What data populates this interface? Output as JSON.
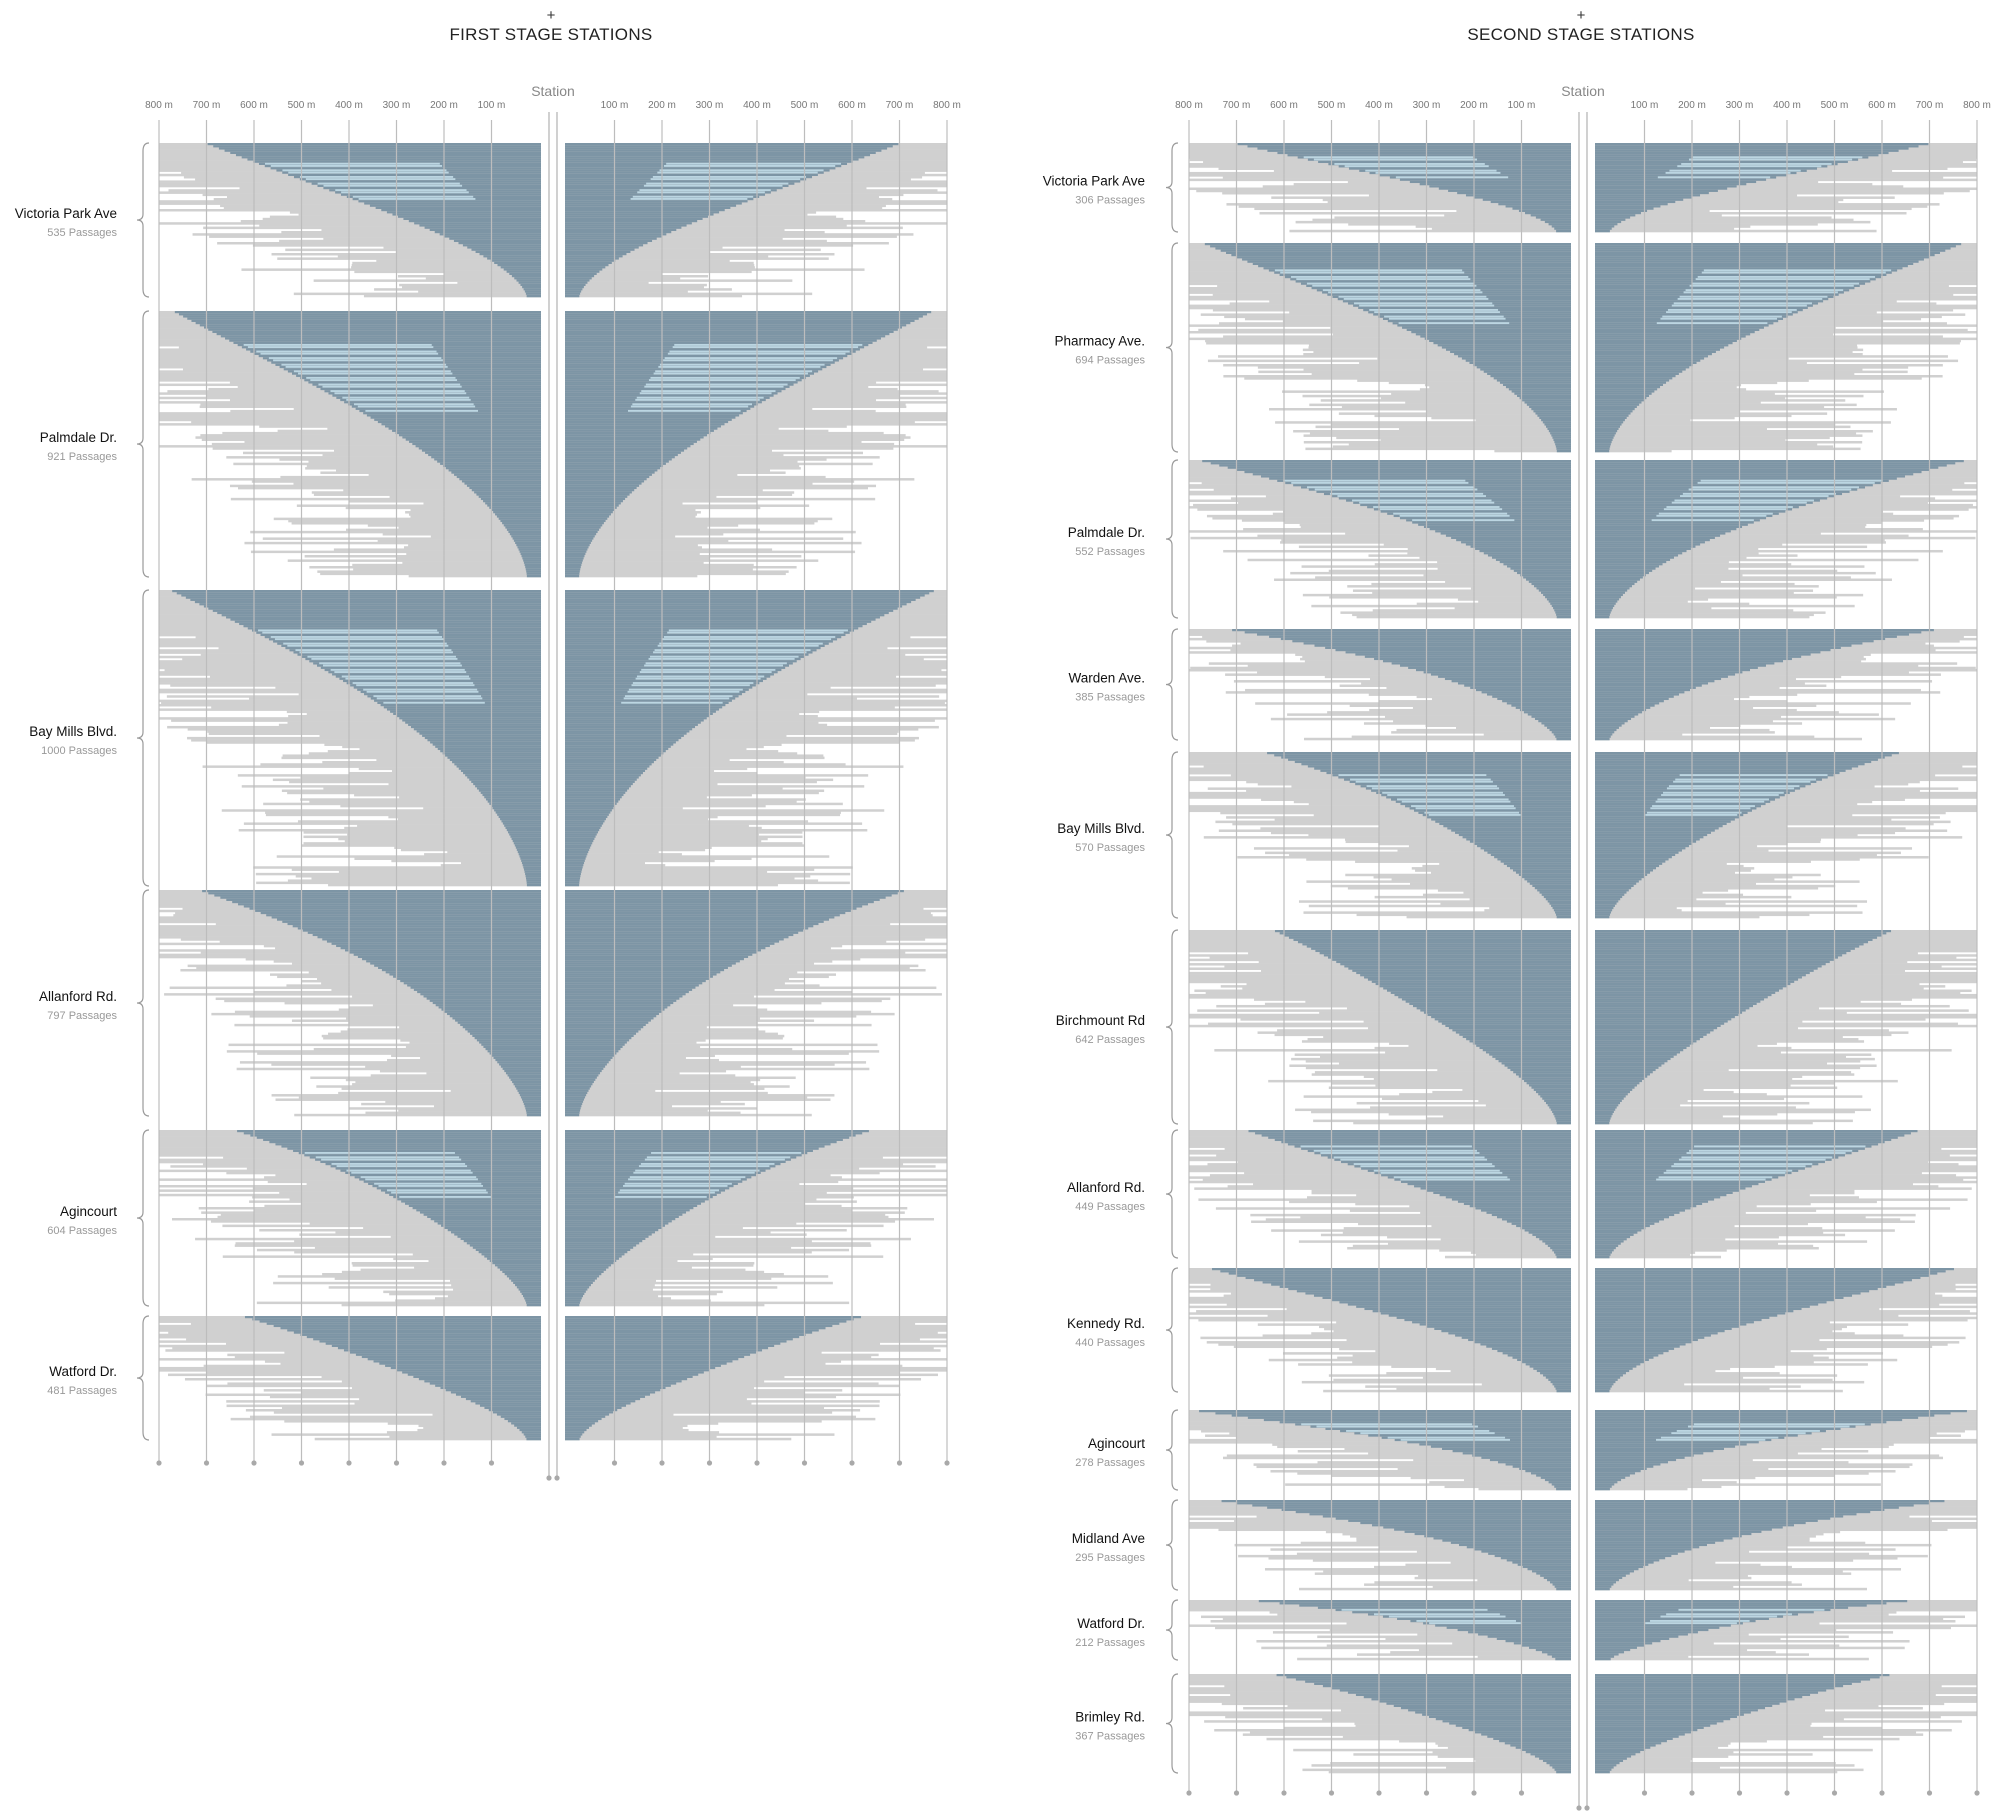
{
  "colors": {
    "dark": "#7d95a5",
    "light": "#bcd6e2",
    "gray": "#d0d0d0",
    "axis": "#bdbdbd",
    "dot": "#a9a9a9"
  },
  "chart_data": [
    {
      "type": "area",
      "title": "FIRST STAGE STATIONS",
      "title_prefix": "+",
      "axis_header": "Station",
      "ticks_left": [
        "800 m",
        "700 m",
        "600 m",
        "500 m",
        "400 m",
        "300 m",
        "200 m",
        "100 m"
      ],
      "ticks_right": [
        "100 m",
        "200 m",
        "300 m",
        "400 m",
        "500 m",
        "600 m",
        "700 m",
        "800 m"
      ],
      "x_range_m": [
        0,
        800
      ],
      "stations": [
        {
          "name": "Victoria Park Ave",
          "passages_label": "535 Passages",
          "passages": 535
        },
        {
          "name": "Palmdale Dr.",
          "passages_label": "921 Passages",
          "passages": 921
        },
        {
          "name": "Bay Mills Blvd.",
          "passages_label": "1000 Passages",
          "passages": 1000
        },
        {
          "name": "Allanford Rd.",
          "passages_label": "797 Passages",
          "passages": 797
        },
        {
          "name": "Agincourt",
          "passages_label": "604 Passages",
          "passages": 604
        },
        {
          "name": "Watford Dr.",
          "passages_label": "481 Passages",
          "passages": 481
        }
      ]
    },
    {
      "type": "area",
      "title": "SECOND STAGE STATIONS",
      "title_prefix": "+",
      "axis_header": "Station",
      "ticks_left": [
        "800 m",
        "700 m",
        "600 m",
        "500 m",
        "400 m",
        "300 m",
        "200 m",
        "100 m"
      ],
      "ticks_right": [
        "100 m",
        "200 m",
        "300 m",
        "400 m",
        "500 m",
        "600 m",
        "700 m",
        "800 m"
      ],
      "x_range_m": [
        0,
        800
      ],
      "stations": [
        {
          "name": "Victoria Park Ave",
          "passages_label": "306 Passages",
          "passages": 306
        },
        {
          "name": "Pharmacy Ave.",
          "passages_label": "694 Passages",
          "passages": 694
        },
        {
          "name": "Palmdale Dr.",
          "passages_label": "552 Passages",
          "passages": 552
        },
        {
          "name": "Warden Ave.",
          "passages_label": "385 Passages",
          "passages": 385
        },
        {
          "name": "Bay Mills Blvd.",
          "passages_label": "570 Passages",
          "passages": 570
        },
        {
          "name": "Birchmount Rd",
          "passages_label": "642 Passages",
          "passages": 642
        },
        {
          "name": "Allanford Rd.",
          "passages_label": "449 Passages",
          "passages": 449
        },
        {
          "name": "Kennedy Rd.",
          "passages_label": "440 Passages",
          "passages": 440
        },
        {
          "name": "Agincourt",
          "passages_label": "278 Passages",
          "passages": 278
        },
        {
          "name": "Midland Ave",
          "passages_label": "295 Passages",
          "passages": 295
        },
        {
          "name": "Watford Dr.",
          "passages_label": "212 Passages",
          "passages": 212
        },
        {
          "name": "Brimley Rd.",
          "passages_label": "367 Passages",
          "passages": 367
        }
      ]
    }
  ]
}
